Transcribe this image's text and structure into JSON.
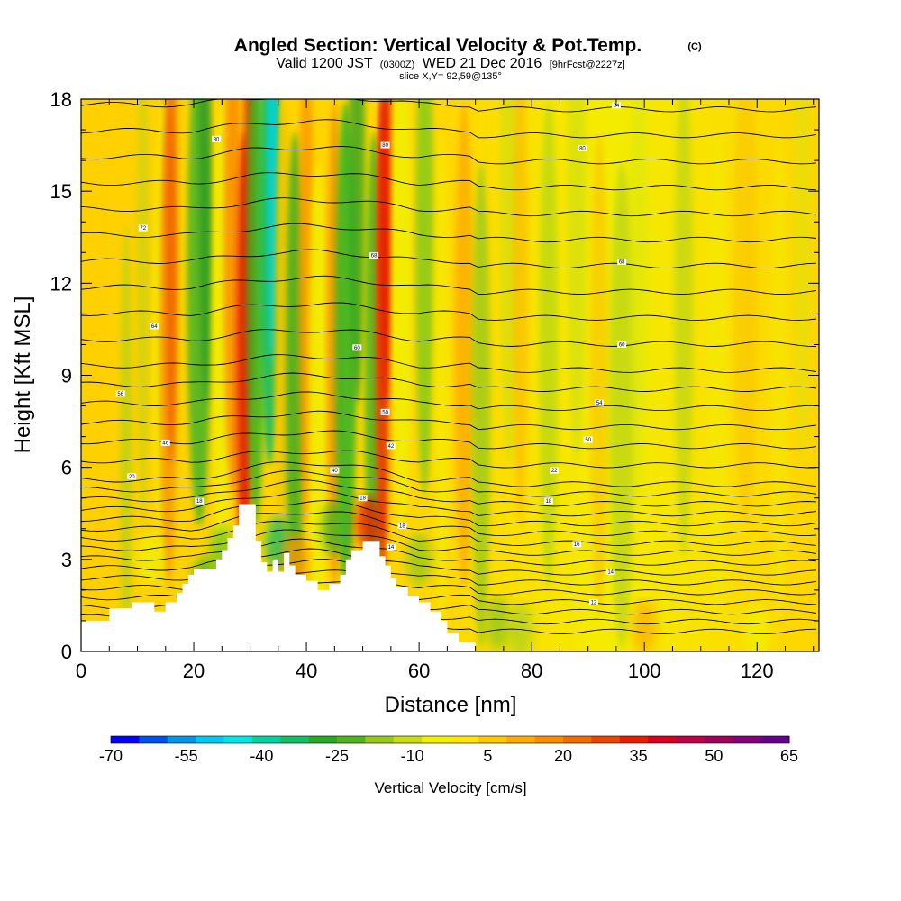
{
  "chart_data": {
    "type": "heatmap",
    "title": "Angled Section: Vertical Velocity & Pot.Temp.",
    "title_unit": "(C)",
    "subtitle": {
      "valid": "Valid 1200 JST",
      "zulu": "(0300Z)",
      "date": "WED 21 Dec 2016",
      "forecast": "[9hrFcst@2227z]"
    },
    "slice_label": "slice X,Y= 92,59@135°",
    "xlabel": "Distance [nm]",
    "ylabel": "Height [Kft MSL]",
    "xlim": [
      0,
      131
    ],
    "ylim": [
      0,
      18
    ],
    "x_ticks": [
      0,
      20,
      40,
      60,
      80,
      100,
      120
    ],
    "y_ticks": [
      0,
      3,
      6,
      9,
      12,
      15,
      18
    ],
    "colorbar": {
      "label": "Vertical Velocity [cm/s]",
      "ticks": [
        "-70",
        "-55",
        "-40",
        "-25",
        "-10",
        "5",
        "20",
        "35",
        "50",
        "65"
      ],
      "colors": [
        "#0000ff",
        "#0050f0",
        "#0096e6",
        "#00c8f0",
        "#00e6e6",
        "#00d2a0",
        "#14be64",
        "#28aa28",
        "#50b41e",
        "#96c81e",
        "#c8dc14",
        "#f0f000",
        "#ffe600",
        "#ffc800",
        "#ffaa00",
        "#fa8c00",
        "#f06e00",
        "#eb4600",
        "#e61e00",
        "#d7001e",
        "#be0046",
        "#a0005a",
        "#820078",
        "#64008c"
      ]
    },
    "terrain": [
      [
        0,
        1
      ],
      [
        5,
        1
      ],
      [
        5,
        1.4
      ],
      [
        9,
        1.4
      ],
      [
        9,
        1.6
      ],
      [
        13,
        1.6
      ],
      [
        13,
        1.3
      ],
      [
        15,
        1.3
      ],
      [
        15,
        1.6
      ],
      [
        17,
        1.6
      ],
      [
        17,
        1.9
      ],
      [
        18,
        1.9
      ],
      [
        18,
        2.2
      ],
      [
        19,
        2.2
      ],
      [
        19,
        2.5
      ],
      [
        20,
        2.5
      ],
      [
        20,
        2.7
      ],
      [
        24,
        2.7
      ],
      [
        24,
        3
      ],
      [
        25,
        3
      ],
      [
        25,
        3.3
      ],
      [
        26,
        3.3
      ],
      [
        26,
        3.7
      ],
      [
        27,
        3.7
      ],
      [
        27,
        4.1
      ],
      [
        28,
        4.1
      ],
      [
        28,
        4.8
      ],
      [
        31,
        4.8
      ],
      [
        31,
        3.6
      ],
      [
        32,
        3.6
      ],
      [
        32,
        2.9
      ],
      [
        33,
        2.9
      ],
      [
        33,
        2.6
      ],
      [
        34,
        2.6
      ],
      [
        34,
        3
      ],
      [
        35,
        3
      ],
      [
        35,
        2.6
      ],
      [
        36,
        2.6
      ],
      [
        36,
        3.2
      ],
      [
        37,
        3.2
      ],
      [
        37,
        2.8
      ],
      [
        38,
        2.8
      ],
      [
        38,
        2.5
      ],
      [
        40,
        2.5
      ],
      [
        40,
        2.3
      ],
      [
        42,
        2.3
      ],
      [
        42,
        2
      ],
      [
        44,
        2
      ],
      [
        44,
        2.2
      ],
      [
        46,
        2.2
      ],
      [
        46,
        2.5
      ],
      [
        47,
        2.5
      ],
      [
        47,
        3
      ],
      [
        48,
        3
      ],
      [
        48,
        3.3
      ],
      [
        50,
        3.3
      ],
      [
        50,
        3.6
      ],
      [
        53,
        3.6
      ],
      [
        53,
        3.1
      ],
      [
        54,
        3.1
      ],
      [
        54,
        2.8
      ],
      [
        55,
        2.8
      ],
      [
        55,
        2.4
      ],
      [
        56,
        2.4
      ],
      [
        56,
        2.1
      ],
      [
        58,
        2.1
      ],
      [
        58,
        1.8
      ],
      [
        60,
        1.8
      ],
      [
        60,
        1.6
      ],
      [
        62,
        1.6
      ],
      [
        62,
        1.3
      ],
      [
        64,
        1.3
      ],
      [
        64,
        1
      ],
      [
        65,
        1
      ],
      [
        65,
        0.6
      ],
      [
        67,
        0.6
      ],
      [
        67,
        0.3
      ],
      [
        70,
        0.3
      ],
      [
        70,
        0
      ],
      [
        131,
        0
      ]
    ],
    "contour_labels": [
      {
        "text": "84",
        "x": 95,
        "y": 17.8
      },
      {
        "text": "80",
        "x": 24,
        "y": 16.7
      },
      {
        "text": "80",
        "x": 54,
        "y": 16.5
      },
      {
        "text": "80",
        "x": 89,
        "y": 16.4
      },
      {
        "text": "72",
        "x": 11,
        "y": 13.8
      },
      {
        "text": "68",
        "x": 52,
        "y": 12.9
      },
      {
        "text": "68",
        "x": 96,
        "y": 12.7
      },
      {
        "text": "64",
        "x": 13,
        "y": 10.6
      },
      {
        "text": "60",
        "x": 49,
        "y": 9.9
      },
      {
        "text": "60",
        "x": 96,
        "y": 10
      },
      {
        "text": "56",
        "x": 7,
        "y": 8.4
      },
      {
        "text": "54",
        "x": 92,
        "y": 8.1
      },
      {
        "text": "50",
        "x": 54,
        "y": 7.8
      },
      {
        "text": "46",
        "x": 15,
        "y": 6.8
      },
      {
        "text": "50",
        "x": 90,
        "y": 6.9
      },
      {
        "text": "42",
        "x": 55,
        "y": 6.7
      },
      {
        "text": "20",
        "x": 9,
        "y": 5.7
      },
      {
        "text": "40",
        "x": 45,
        "y": 5.9
      },
      {
        "text": "22",
        "x": 84,
        "y": 5.9
      },
      {
        "text": "18",
        "x": 21,
        "y": 4.9
      },
      {
        "text": "18",
        "x": 50,
        "y": 5
      },
      {
        "text": "18",
        "x": 83,
        "y": 4.9
      },
      {
        "text": "18",
        "x": 57,
        "y": 4.1
      },
      {
        "text": "16",
        "x": 88,
        "y": 3.5
      },
      {
        "text": "14",
        "x": 55,
        "y": 3.4
      },
      {
        "text": "14",
        "x": 94,
        "y": 2.6
      },
      {
        "text": "12",
        "x": 91,
        "y": 1.6
      }
    ]
  }
}
